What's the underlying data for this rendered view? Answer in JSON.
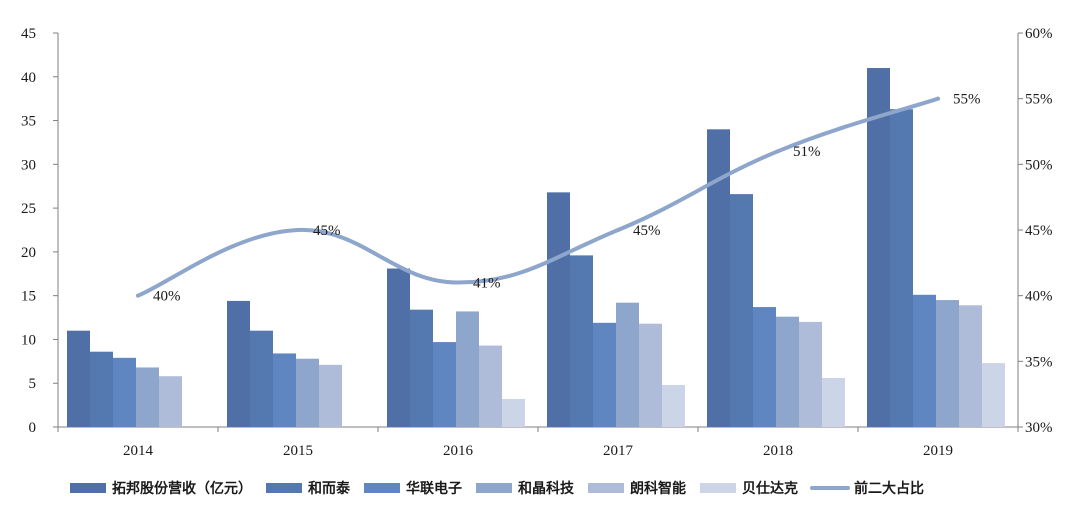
{
  "chart_data": {
    "type": "bar",
    "categories": [
      "2014",
      "2015",
      "2016",
      "2017",
      "2018",
      "2019"
    ],
    "series": [
      {
        "name": "拓邦股份营收（亿元）",
        "color": "#4f6fa6",
        "values": [
          11.0,
          14.4,
          18.1,
          26.8,
          34.0,
          41.0
        ]
      },
      {
        "name": "和而泰",
        "color": "#5478b0",
        "values": [
          8.6,
          11.0,
          13.4,
          19.6,
          26.6,
          36.3
        ]
      },
      {
        "name": "华联电子",
        "color": "#5f86c0",
        "values": [
          7.9,
          8.4,
          9.7,
          11.9,
          13.7,
          15.1
        ]
      },
      {
        "name": "和晶科技",
        "color": "#8ea6cb",
        "values": [
          6.8,
          7.8,
          13.2,
          14.2,
          12.6,
          14.5
        ]
      },
      {
        "name": "朗科智能",
        "color": "#aebcda",
        "values": [
          5.8,
          7.1,
          9.3,
          11.8,
          12.0,
          13.9
        ]
      },
      {
        "name": "贝仕达克",
        "color": "#ccd5e8",
        "values": [
          null,
          null,
          3.2,
          4.8,
          5.6,
          7.3
        ]
      }
    ],
    "line": {
      "name": "前二大占比",
      "color": "#8ea6cb",
      "values": [
        40,
        45,
        41,
        45,
        51,
        55
      ],
      "labels": [
        "40%",
        "45%",
        "41%",
        "45%",
        "51%",
        "55%"
      ]
    },
    "ylim": [
      0,
      45
    ],
    "yticks": [
      "0",
      "5",
      "10",
      "15",
      "20",
      "25",
      "30",
      "35",
      "40",
      "45"
    ],
    "y2lim": [
      30,
      60
    ],
    "y2ticks": [
      "30%",
      "35%",
      "40%",
      "45%",
      "50%",
      "55%",
      "60%"
    ],
    "xlabel": "",
    "ylabel": "",
    "legend_position": "bottom"
  }
}
